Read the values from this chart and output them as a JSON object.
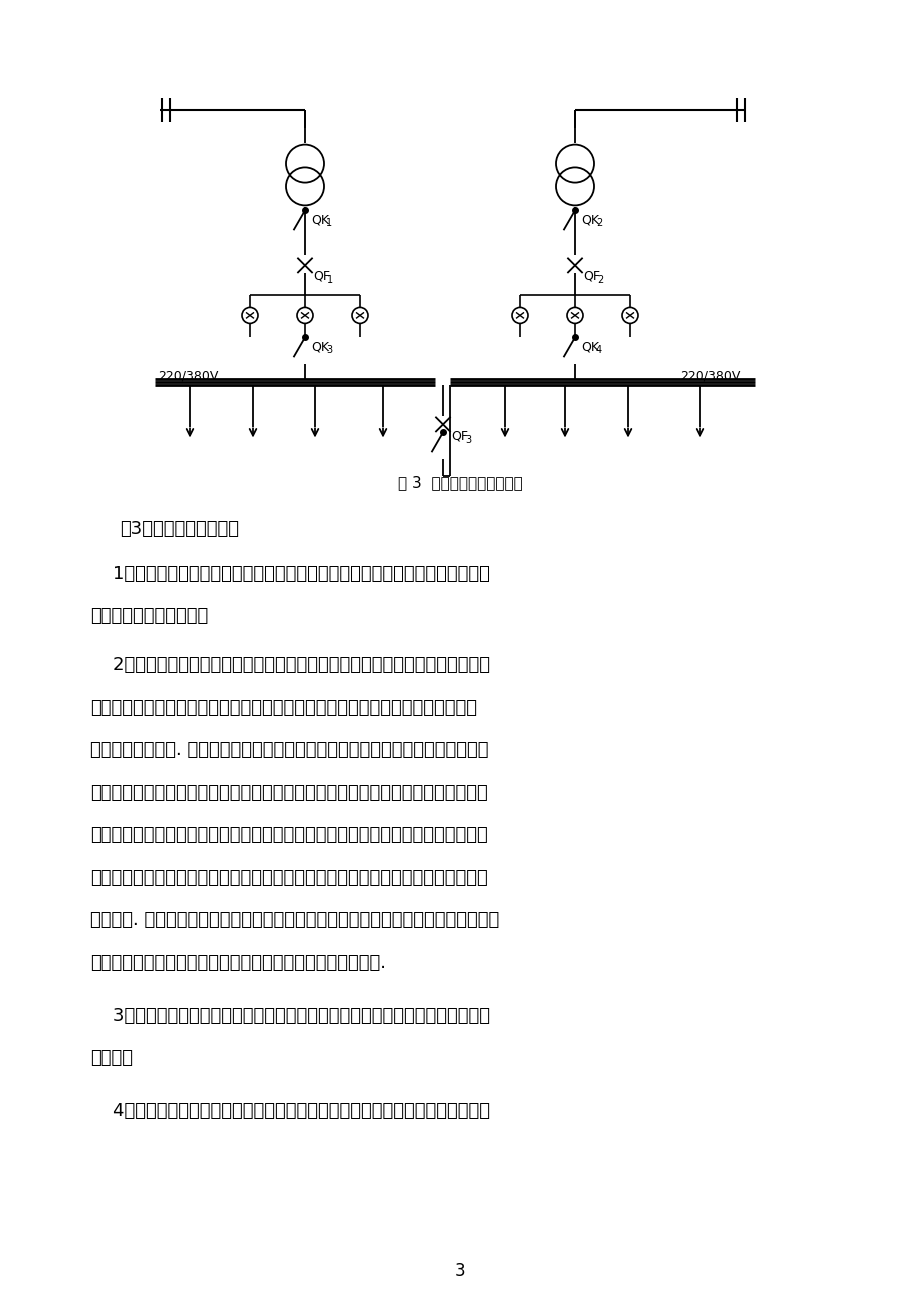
{
  "bg_color": "#ffffff",
  "fig_caption": "图 3  两台变压器主接线方案",
  "page_number": "3",
  "line_color": "#000000",
  "body_fontsize": 13,
  "caption_fontsize": 11,
  "label_fontsize": 9,
  "diagram": {
    "label_QK1": "QK",
    "label_QK1_sub": "1",
    "label_QF1": "QF",
    "label_QF1_sub": "1",
    "label_QK3": "QK",
    "label_QK3_sub": "3",
    "label_QK2": "QK",
    "label_QK2_sub": "2",
    "label_QF2": "QF",
    "label_QF2_sub": "2",
    "label_QK4": "QK",
    "label_QK4_sub": "4",
    "label_QF3": "QF",
    "label_QF3_sub": "3",
    "label_v1": "220/380V",
    "label_v2": "220/380V"
  },
  "para0": "（3）这两种方案的比较",
  "para1_lines": [
    "    1）从安全性看这两种主接线方式都满足国家的标准的技术规范的要求，能充分",
    "保证人身和设备的安全。"
  ],
  "para2_lines": [
    "    2）从可靠性看这两种电力负荷满足该车间的二级负荷要求。对于第一种主接线",
    "的工作方式是当机电修车间或轧钢车间任意一个故障停电检修时，通过联络线由另",
    "一个车间提供电源. 在低压联络线上，轧钢低压联络线侧的配电瓶将它始终处于打开",
    "状态，当机电修车间变压器要检修时，先打开机电修车间侧配电瓶的开关，使其与轧",
    "钢车间通电，然后断开其本车间母线上的开关，这样保证了不影响生产断电；当处于",
    "故障时，母线和高压的断路器自动断开，联络线上的开关开启，也保证了供电的需要",
    "而不间断. 对于第二中方案，同样当一个变压器故障，也由另一个变压器供电，它是通",
    "过母线分段，通过联络线上的断路器来实现双电源的自动互投."
  ],
  "para3_lines": [
    "    3）从灵活性看能适应各种不同的运行方式，便于切换操作和检修，且适应负荷",
    "的发展。"
  ],
  "para4_lines": [
    "    4）从经济上看，第一种方案比第二种方案少一套高压线路、变压器、高压熔断"
  ]
}
